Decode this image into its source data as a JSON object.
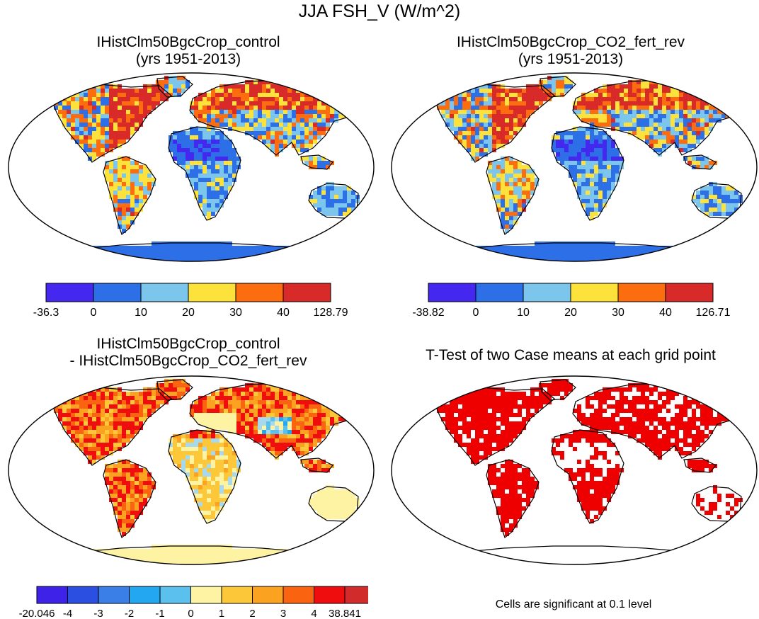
{
  "title": "JJA FSH_V (W/m^2)",
  "colors": {
    "neg_deep": "#4428f0",
    "neg_mid": "#2d6fe6",
    "ten": "#7cc5ec",
    "twenty": "#fde23c",
    "thirty": "#fb6d0e",
    "forty": "#d92a2a",
    "red_sig": "#ee0000",
    "diff_light_yellow": "#fdf3a2"
  },
  "chart_data": [
    {
      "type": "heatmap",
      "title": "IHistClm50BgcCrop_control\n(yrs 1951-2013)",
      "colorbar": {
        "tick_labels": [
          "-36.3",
          "0",
          "10",
          "20",
          "30",
          "40",
          "128.79"
        ],
        "bins": [
          {
            "from": -36.3,
            "to": 0,
            "color": "#4428f0"
          },
          {
            "from": 0,
            "to": 10,
            "color": "#2d6fe6"
          },
          {
            "from": 10,
            "to": 20,
            "color": "#7cc5ec"
          },
          {
            "from": 20,
            "to": 30,
            "color": "#fde23c"
          },
          {
            "from": 30,
            "to": 40,
            "color": "#fb6d0e"
          },
          {
            "from": 40,
            "to": 128.79,
            "color": "#d92a2a"
          }
        ]
      }
    },
    {
      "type": "heatmap",
      "title": "IHistClm50BgcCrop_CO2_fert_rev\n(yrs 1951-2013)",
      "colorbar": {
        "tick_labels": [
          "-38.82",
          "0",
          "10",
          "20",
          "30",
          "40",
          "126.71"
        ],
        "bins": [
          {
            "from": -38.82,
            "to": 0,
            "color": "#4428f0"
          },
          {
            "from": 0,
            "to": 10,
            "color": "#2d6fe6"
          },
          {
            "from": 10,
            "to": 20,
            "color": "#7cc5ec"
          },
          {
            "from": 20,
            "to": 30,
            "color": "#fde23c"
          },
          {
            "from": 30,
            "to": 40,
            "color": "#fb6d0e"
          },
          {
            "from": 40,
            "to": 126.71,
            "color": "#d92a2a"
          }
        ]
      }
    },
    {
      "type": "heatmap",
      "title": "IHistClm50BgcCrop_control\n- IHistClm50BgcCrop_CO2_fert_rev",
      "colorbar": {
        "tick_labels": [
          "-20.046",
          "-4",
          "-3",
          "-2",
          "-1",
          "0",
          "1",
          "2",
          "3",
          "4",
          "38.841"
        ],
        "bins": [
          {
            "from": -20.046,
            "to": -4,
            "color": "#3f22e8"
          },
          {
            "from": -4,
            "to": -3,
            "color": "#2b4fe0"
          },
          {
            "from": -3,
            "to": -2,
            "color": "#3a7fe8"
          },
          {
            "from": -2,
            "to": -1,
            "color": "#22a7f0"
          },
          {
            "from": -1,
            "to": 0,
            "color": "#5bc0ee"
          },
          {
            "from": 0,
            "to": 0.5,
            "color": "#a6d8ee"
          },
          {
            "from": 0.5,
            "to": 1,
            "color": "#fdf3a2"
          },
          {
            "from": 1,
            "to": 2,
            "color": "#fcc83a"
          },
          {
            "from": 2,
            "to": 3,
            "color": "#fba320"
          },
          {
            "from": 3,
            "to": 4,
            "color": "#fa6410"
          },
          {
            "from": 4,
            "to": 12,
            "color": "#ef0d0d"
          },
          {
            "from": 12,
            "to": 38.841,
            "color": "#d12b2b"
          }
        ]
      }
    },
    {
      "type": "heatmap",
      "title": "T-Test of two Case means at each grid point",
      "note": "Cells are significant at 0.1 level"
    }
  ]
}
